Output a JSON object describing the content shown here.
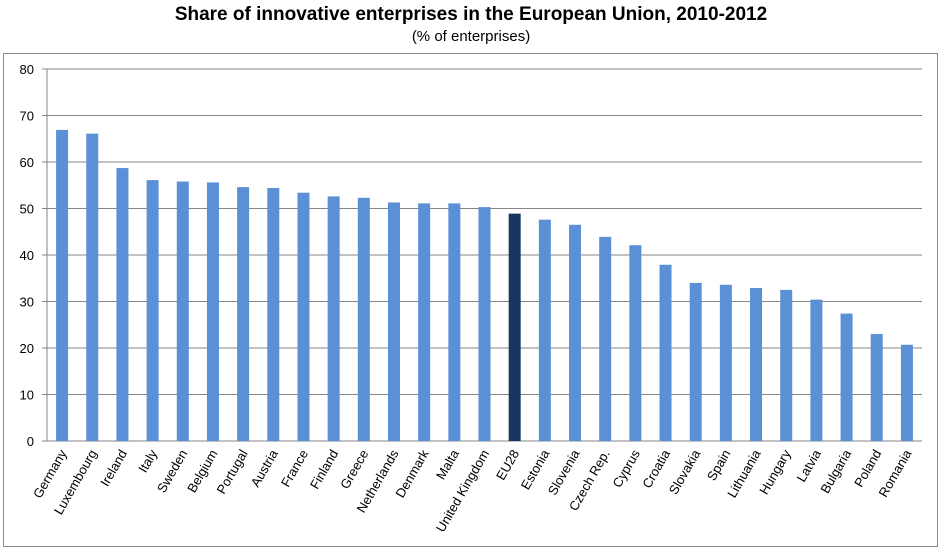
{
  "chart_data": {
    "type": "bar",
    "title": "Share of innovative enterprises in the European Union, 2010-2012",
    "subtitle": "(% of enterprises)",
    "xlabel": "",
    "ylabel": "",
    "ylim": [
      0,
      80
    ],
    "yticks": [
      0,
      10,
      20,
      30,
      40,
      50,
      60,
      70,
      80
    ],
    "grid": true,
    "legend": "none",
    "categories": [
      "Germany",
      "Luxembourg",
      "Ireland",
      "Italy",
      "Sweden",
      "Belgium",
      "Portugal",
      "Austria",
      "France",
      "Finland",
      "Greece",
      "Netherlands",
      "Denmark",
      "Malta",
      "United Kingdom",
      "EU28",
      "Estonia",
      "Slovenia",
      "Czech Rep.",
      "Cyprus",
      "Croatia",
      "Slovakia",
      "Spain",
      "Lithuania",
      "Hungary",
      "Latvia",
      "Bulgaria",
      "Poland",
      "Romania"
    ],
    "values": [
      66.9,
      66.1,
      58.7,
      56.1,
      55.8,
      55.6,
      54.6,
      54.4,
      53.4,
      52.6,
      52.3,
      51.3,
      51.1,
      51.1,
      50.3,
      48.9,
      47.6,
      46.5,
      43.9,
      42.1,
      37.9,
      34.0,
      33.6,
      32.9,
      32.5,
      30.4,
      27.4,
      23.0,
      20.7
    ],
    "colors": {
      "bar": "#5b8fd6",
      "highlight": "#17375e",
      "grid": "#868686"
    },
    "highlight_category": "EU28"
  }
}
